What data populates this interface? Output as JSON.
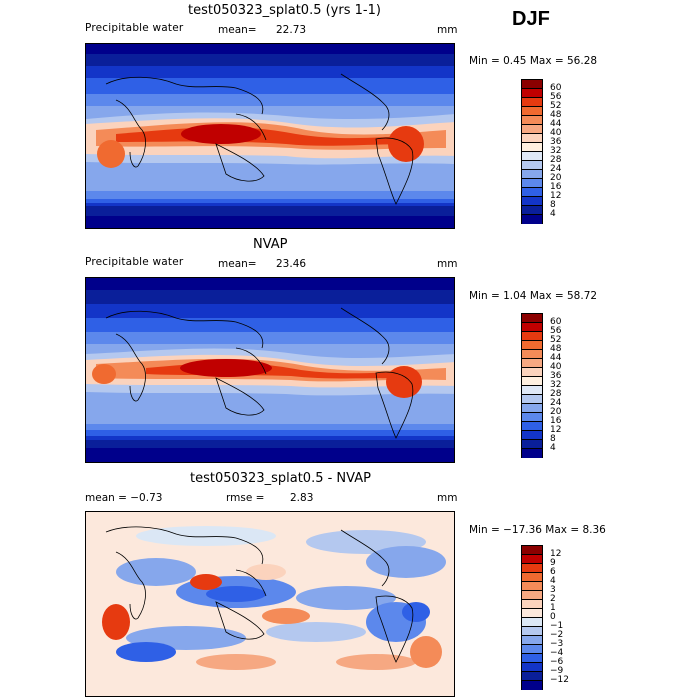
{
  "season": "DJF",
  "units": "mm",
  "panels": [
    {
      "title": "test050323_splat0.5 (yrs 1-1)",
      "left_label": "Precipitable water",
      "mid_label": "mean=",
      "mid_value": "22.73",
      "minmax": "Min =    0.45 Max =   56.28",
      "colorbar_labels": [
        "60",
        "56",
        "52",
        "48",
        "44",
        "40",
        "36",
        "32",
        "28",
        "24",
        "20",
        "16",
        "12",
        "8",
        "4"
      ]
    },
    {
      "title": "NVAP",
      "left_label": "Precipitable water",
      "mid_label": "mean=",
      "mid_value": "23.46",
      "minmax": "Min =    1.04 Max =   58.72",
      "colorbar_labels": [
        "60",
        "56",
        "52",
        "48",
        "44",
        "40",
        "36",
        "32",
        "28",
        "24",
        "20",
        "16",
        "12",
        "8",
        "4"
      ]
    },
    {
      "title": "test050323_splat0.5 - NVAP",
      "left_label": "mean =   −0.73",
      "mid_label": "rmse =",
      "mid_value": "2.83",
      "minmax": "Min = −17.36 Max =    8.36",
      "colorbar_labels": [
        "12",
        "9",
        "6",
        "4",
        "3",
        "2",
        "1",
        "0",
        "−1",
        "−2",
        "−3",
        "−4",
        "−6",
        "−9",
        "−12"
      ]
    }
  ],
  "colors": {
    "abs_scale": [
      "#8b0000",
      "#c00000",
      "#e63a10",
      "#f06a30",
      "#f48b58",
      "#f6a882",
      "#fbd3bd",
      "#fff0e0",
      "#dfe8f6",
      "#b4c8ef",
      "#86a7ec",
      "#5c88ec",
      "#2f60e6",
      "#1335c8",
      "#0a1f9a",
      "#00008b"
    ],
    "diff_scale": [
      "#8b0000",
      "#c00000",
      "#e63a10",
      "#f06a30",
      "#f48b58",
      "#f6a882",
      "#fbd3bd",
      "#fce8dc",
      "#dbe7f5",
      "#b4c8ef",
      "#86a7ec",
      "#5c88ec",
      "#2f60e6",
      "#1335c8",
      "#0a1f9a",
      "#00008b"
    ]
  }
}
